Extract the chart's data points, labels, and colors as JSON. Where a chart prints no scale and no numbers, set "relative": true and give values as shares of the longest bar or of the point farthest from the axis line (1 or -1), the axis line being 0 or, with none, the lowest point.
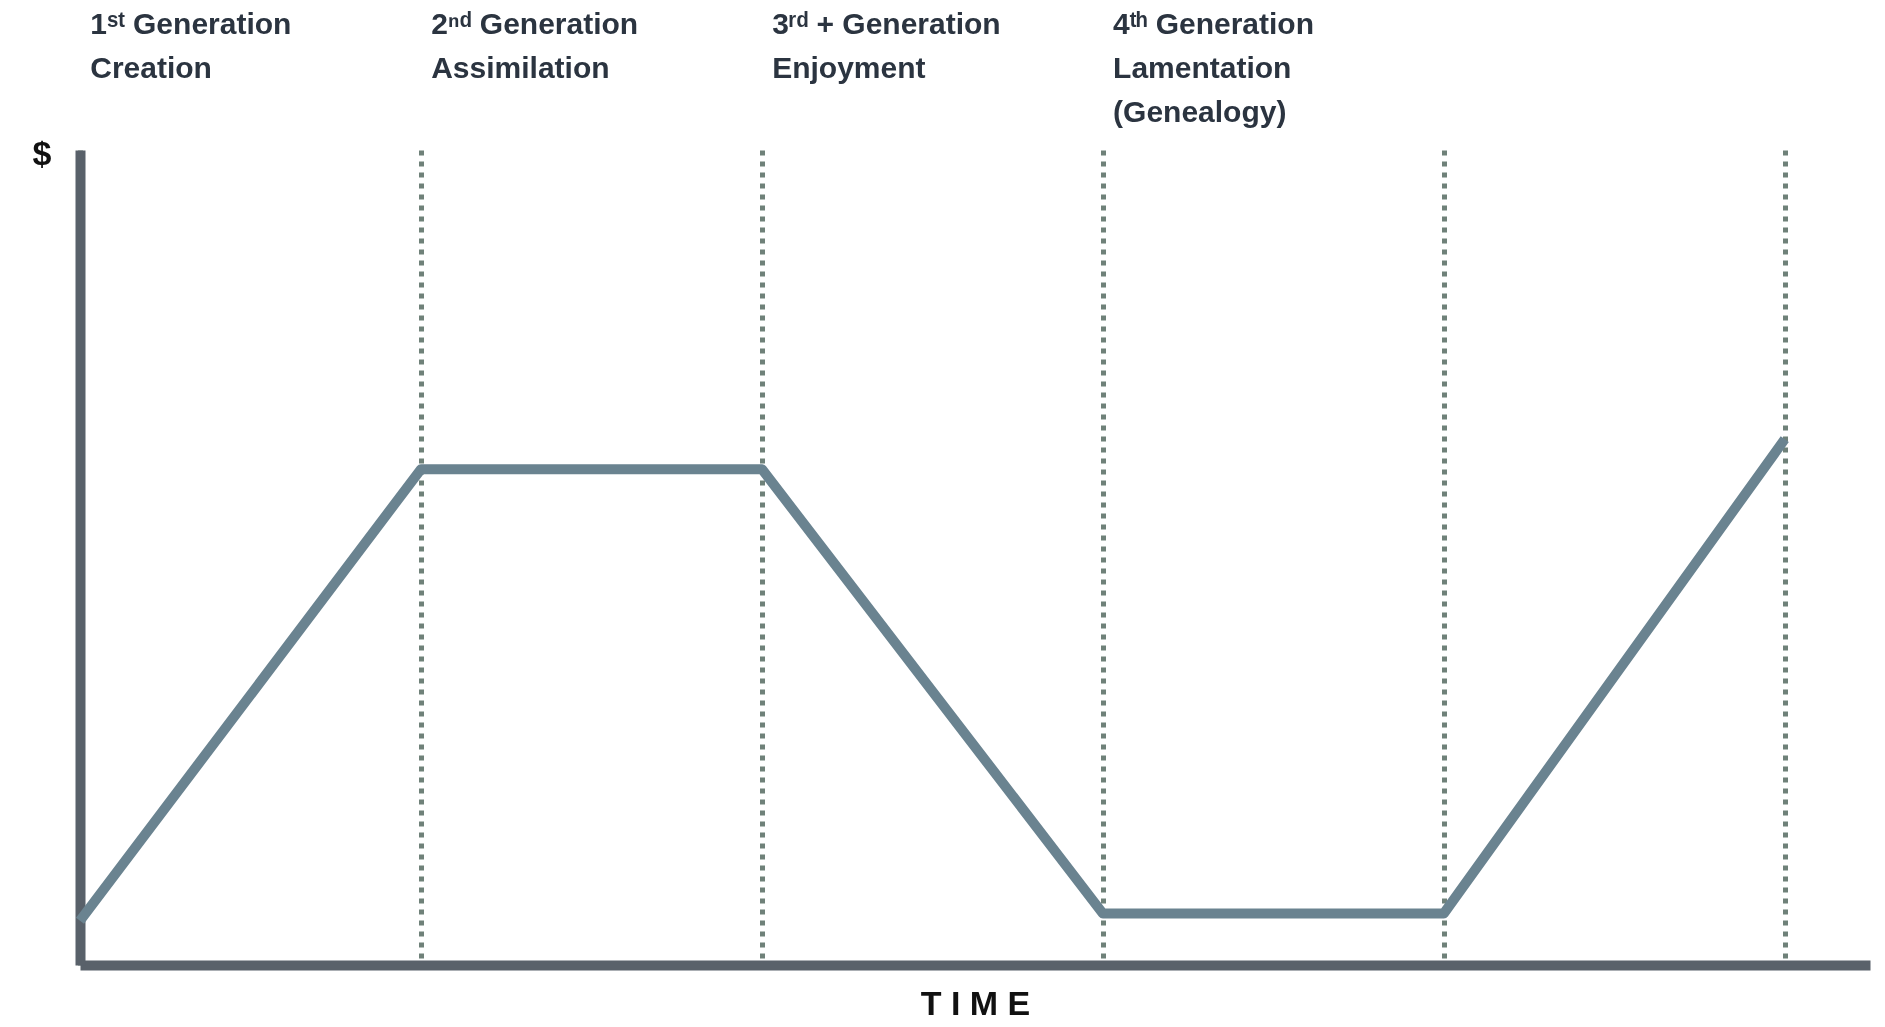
{
  "chart_data": {
    "type": "line",
    "relative": true,
    "categories": [
      null,
      null,
      null,
      null,
      null,
      null
    ],
    "series": [
      {
        "color": "#6a8390",
        "values": [
          0.084,
          0.943,
          0.943,
          0.098,
          0.098,
          1
        ]
      }
    ],
    "xlabel": "T I M E",
    "grid": "x",
    "marker": "none",
    "line_style": "solid",
    "annotations": [
      "$",
      "1ˢᵗ Generation\nCreation",
      "2ⁿᵈ Generation\nAssimilation",
      "3ʳᵈ + Generation\nEnjoyment",
      "4ᵗʰ Generation\nLamentation\n(Genealogy)"
    ]
  }
}
